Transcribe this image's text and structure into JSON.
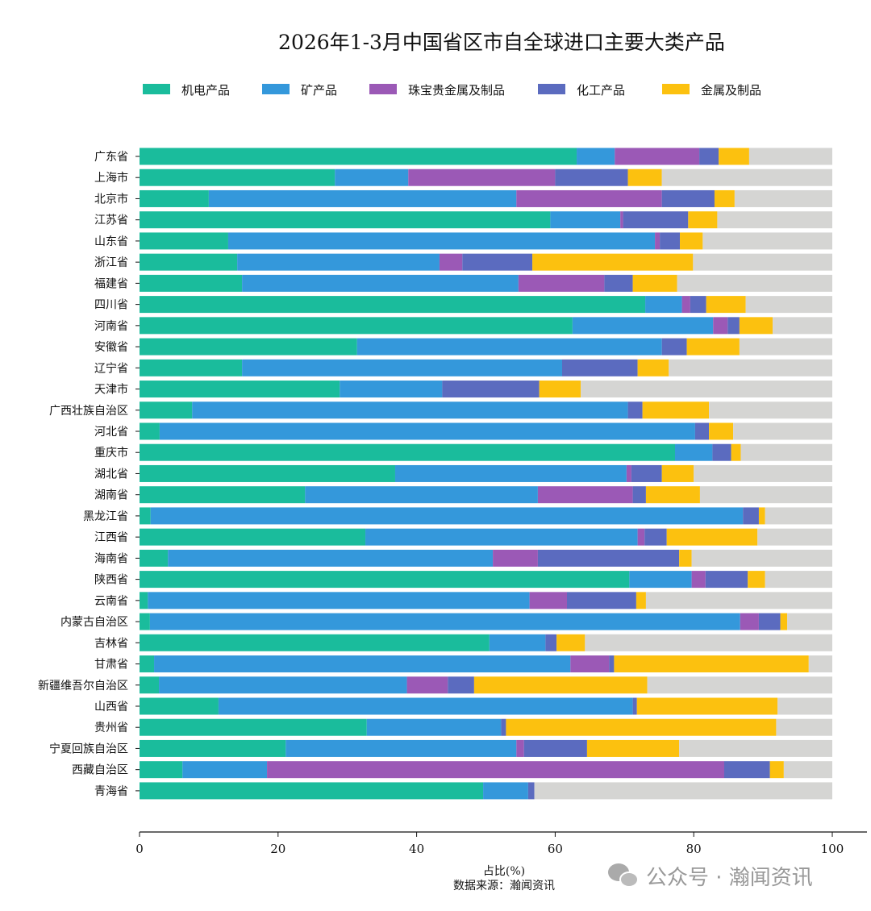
{
  "chart_data": {
    "type": "bar",
    "orientation": "horizontal",
    "stacked": true,
    "title": "2026年1-3月中国省区市自全球进口主要大类产品",
    "xlabel": "占比(%)",
    "source": "数据来源：瀚闻资讯",
    "xlim": [
      0,
      100
    ],
    "xticks": [
      0,
      20,
      40,
      60,
      80,
      100
    ],
    "grid": false,
    "legend_position": "top",
    "remainder_color": "#d5d5d3",
    "categories": [
      "广东省",
      "上海市",
      "北京市",
      "江苏省",
      "山东省",
      "浙江省",
      "福建省",
      "四川省",
      "河南省",
      "安徽省",
      "辽宁省",
      "天津市",
      "广西壮族自治区",
      "河北省",
      "重庆市",
      "湖北省",
      "湖南省",
      "黑龙江省",
      "江西省",
      "海南省",
      "陕西省",
      "云南省",
      "内蒙古自治区",
      "吉林省",
      "甘肃省",
      "新疆维吾尔自治区",
      "山西省",
      "贵州省",
      "宁夏回族自治区",
      "西藏自治区",
      "青海省"
    ],
    "series": [
      {
        "name": "机电产品",
        "color": "#1abc9c",
        "values": [
          63.1,
          28.2,
          10.0,
          59.3,
          12.8,
          14.1,
          14.8,
          73.0,
          62.5,
          31.4,
          14.8,
          28.9,
          7.6,
          2.9,
          77.3,
          36.9,
          23.9,
          1.6,
          32.6,
          4.1,
          70.7,
          1.2,
          1.5,
          50.5,
          2.1,
          2.8,
          11.4,
          32.8,
          21.1,
          6.2,
          49.6
        ]
      },
      {
        "name": "矿产品",
        "color": "#3498db",
        "values": [
          5.5,
          10.6,
          44.4,
          10.1,
          61.6,
          29.2,
          39.9,
          5.3,
          20.3,
          44.0,
          46.2,
          14.8,
          62.9,
          77.3,
          5.4,
          33.4,
          33.6,
          85.5,
          39.3,
          46.9,
          9.0,
          55.1,
          85.2,
          8.1,
          60.1,
          35.8,
          59.8,
          19.4,
          33.3,
          12.2,
          6.5
        ]
      },
      {
        "name": "珠宝贵金属及制品",
        "color": "#9b59b6",
        "values": [
          12.2,
          21.2,
          21.0,
          0.4,
          0.7,
          3.3,
          12.4,
          1.2,
          2.1,
          0,
          0,
          0,
          0,
          0,
          0,
          0.7,
          13.7,
          0,
          1.0,
          6.5,
          2.0,
          5.4,
          2.7,
          0,
          5.6,
          5.9,
          0,
          0,
          1.1,
          66.0,
          0
        ]
      },
      {
        "name": "化工产品",
        "color": "#5b6bbf",
        "values": [
          2.8,
          10.5,
          7.6,
          9.4,
          2.9,
          10.1,
          4.1,
          2.3,
          1.7,
          3.6,
          10.9,
          14.0,
          2.1,
          2.0,
          2.7,
          4.4,
          1.9,
          2.3,
          3.2,
          20.4,
          6.1,
          10.0,
          3.1,
          1.6,
          0.7,
          3.8,
          0.6,
          0.7,
          9.1,
          6.6,
          0.9
        ]
      },
      {
        "name": "金属及制品",
        "color": "#fcc10f",
        "values": [
          4.4,
          4.9,
          2.9,
          4.2,
          3.3,
          23.2,
          6.4,
          5.7,
          4.8,
          7.6,
          4.5,
          6.0,
          9.6,
          3.5,
          1.4,
          4.6,
          7.8,
          0.9,
          13.1,
          1.8,
          2.5,
          1.4,
          1.0,
          4.1,
          28.1,
          25.0,
          20.3,
          39.0,
          13.3,
          2.0,
          0
        ]
      }
    ]
  },
  "watermark": "公众号 · 瀚闻资讯"
}
